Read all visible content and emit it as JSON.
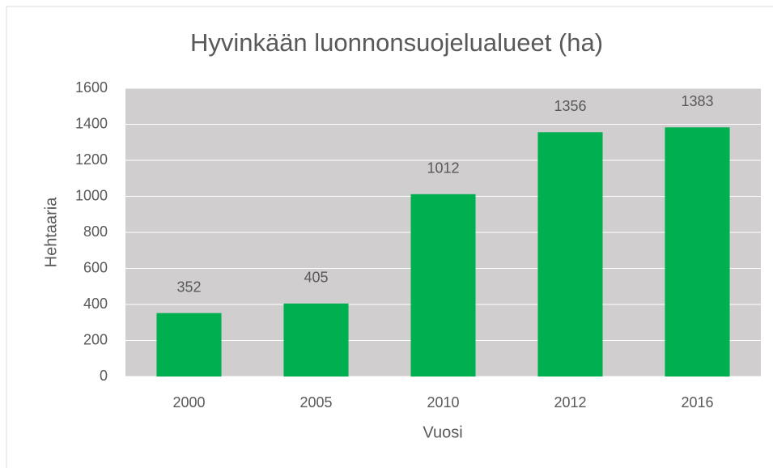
{
  "chart_data": {
    "type": "bar",
    "title": "Hyvinkään luonnonsuojelualueet (ha)",
    "x_label": "Vuosi",
    "y_label": "Hehtaaria",
    "categories": [
      "2000",
      "2005",
      "2010",
      "2012",
      "2016"
    ],
    "values": [
      352,
      405,
      1012,
      1356,
      1383
    ],
    "color": "#00b050",
    "ylim": [
      0,
      1600
    ],
    "yticks": [
      0,
      200,
      400,
      600,
      800,
      1000,
      1200,
      1400,
      1600
    ],
    "grid": true
  }
}
